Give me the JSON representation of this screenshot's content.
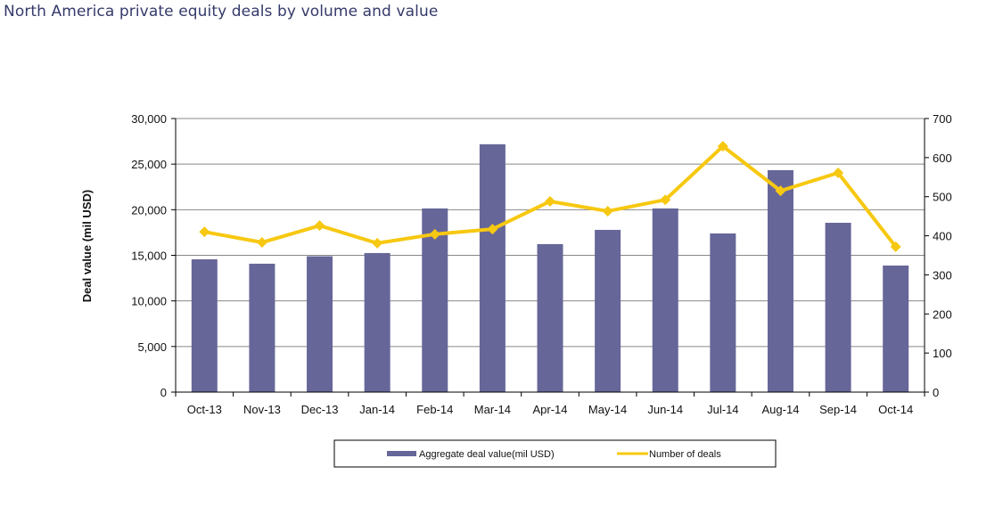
{
  "title": "North America private equity deals by volume and value",
  "chart_data": {
    "type": "bar",
    "title": "North America private equity deals by volume and value",
    "categories": [
      "Oct-13",
      "Nov-13",
      "Dec-13",
      "Jan-14",
      "Feb-14",
      "Mar-14",
      "Apr-14",
      "May-14",
      "Jun-14",
      "Jul-14",
      "Aug-14",
      "Sep-14",
      "Oct-14"
    ],
    "series": [
      {
        "name": "Aggregate deal value(mil USD)",
        "type": "bar",
        "axis": "left",
        "color": "#676699",
        "values": [
          14560,
          14080,
          14900,
          15250,
          20140,
          27180,
          16230,
          17790,
          20140,
          17400,
          24340,
          18570,
          13880
        ]
      },
      {
        "name": "Number of deals",
        "type": "line",
        "axis": "right",
        "color": "#f7c811",
        "marker": "diamond",
        "values": [
          410,
          383,
          426,
          381,
          404,
          417,
          488,
          463,
          492,
          629,
          515,
          561,
          372
        ]
      }
    ],
    "xlabel": "",
    "ylabel": "Deal value (mil USD)",
    "y2label": "",
    "ylim": [
      0,
      30000
    ],
    "y2lim": [
      0,
      700
    ],
    "yticks": [
      "0",
      "5,000",
      "10,000",
      "15,000",
      "20,000",
      "25,000",
      "30,000"
    ],
    "y2ticks": [
      "0",
      "100",
      "200",
      "300",
      "400",
      "500",
      "600",
      "700"
    ],
    "grid": true,
    "legend": "bottom"
  }
}
